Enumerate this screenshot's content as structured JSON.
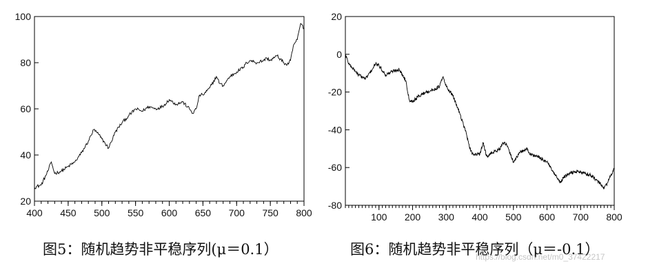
{
  "chart_data": [
    {
      "type": "line",
      "title": "",
      "xlabel": "",
      "ylabel": "",
      "xlim": [
        400,
        800
      ],
      "ylim": [
        20,
        100
      ],
      "xticks": [
        "400",
        "450",
        "500",
        "550",
        "600",
        "650",
        "700",
        "750",
        "800"
      ],
      "yticks": [
        "20",
        "40",
        "60",
        "80",
        "100"
      ],
      "grid": false,
      "series": [
        {
          "x": [
            400,
            410,
            420,
            425,
            430,
            440,
            450,
            460,
            470,
            480,
            488,
            495,
            500,
            505,
            510,
            520,
            530,
            540,
            550,
            560,
            570,
            580,
            590,
            600,
            610,
            620,
            630,
            635,
            640,
            645,
            650,
            660,
            670,
            675,
            680,
            690,
            700,
            710,
            715,
            720,
            730,
            740,
            745,
            750,
            760,
            770,
            775,
            780,
            785,
            790,
            795,
            800
          ],
          "values": [
            26,
            27,
            33,
            37,
            32,
            33,
            35,
            37,
            41,
            46,
            51,
            49,
            47,
            45,
            43,
            50,
            54,
            57,
            60,
            59,
            61,
            60,
            61,
            64,
            62,
            63,
            60,
            58,
            60,
            66,
            66,
            69,
            74,
            71,
            70,
            74,
            76,
            78,
            80,
            81,
            80,
            81,
            82,
            81,
            83,
            80,
            79,
            81,
            88,
            90,
            97,
            95
          ]
        }
      ]
    },
    {
      "type": "line",
      "title": "",
      "xlabel": "",
      "ylabel": "",
      "xlim": [
        0,
        800
      ],
      "ylim": [
        -80,
        20
      ],
      "xticks": [
        "100",
        "200",
        "300",
        "400",
        "500",
        "600",
        "700",
        "800"
      ],
      "yticks": [
        "20",
        "0",
        "-20",
        "-40",
        "-60",
        "-80"
      ],
      "grid": false,
      "series": [
        {
          "x": [
            0,
            10,
            20,
            40,
            60,
            80,
            90,
            100,
            120,
            140,
            160,
            180,
            190,
            200,
            220,
            240,
            260,
            280,
            290,
            300,
            320,
            340,
            360,
            370,
            380,
            400,
            410,
            420,
            440,
            460,
            470,
            480,
            500,
            520,
            540,
            550,
            570,
            600,
            620,
            640,
            650,
            670,
            690,
            710,
            730,
            750,
            770,
            780,
            790,
            800
          ],
          "values": [
            0,
            -5,
            -7,
            -11,
            -13,
            -8,
            -5,
            -6,
            -11,
            -9,
            -8,
            -14,
            -24,
            -25,
            -22,
            -20,
            -19,
            -17,
            -12,
            -17,
            -22,
            -31,
            -42,
            -50,
            -53,
            -53,
            -47,
            -54,
            -52,
            -50,
            -47,
            -48,
            -57,
            -52,
            -50,
            -53,
            -54,
            -57,
            -63,
            -68,
            -65,
            -63,
            -62,
            -63,
            -64,
            -67,
            -71,
            -68,
            -64,
            -61
          ]
        }
      ]
    }
  ],
  "captions": {
    "fig5": "图5：随机趋势非平稳序列(μ＝0.1）",
    "fig6": "图6：随机趋势非平稳序列（μ＝-0.1）"
  },
  "watermark": "https://blog.csdn.net/m0_37422217"
}
